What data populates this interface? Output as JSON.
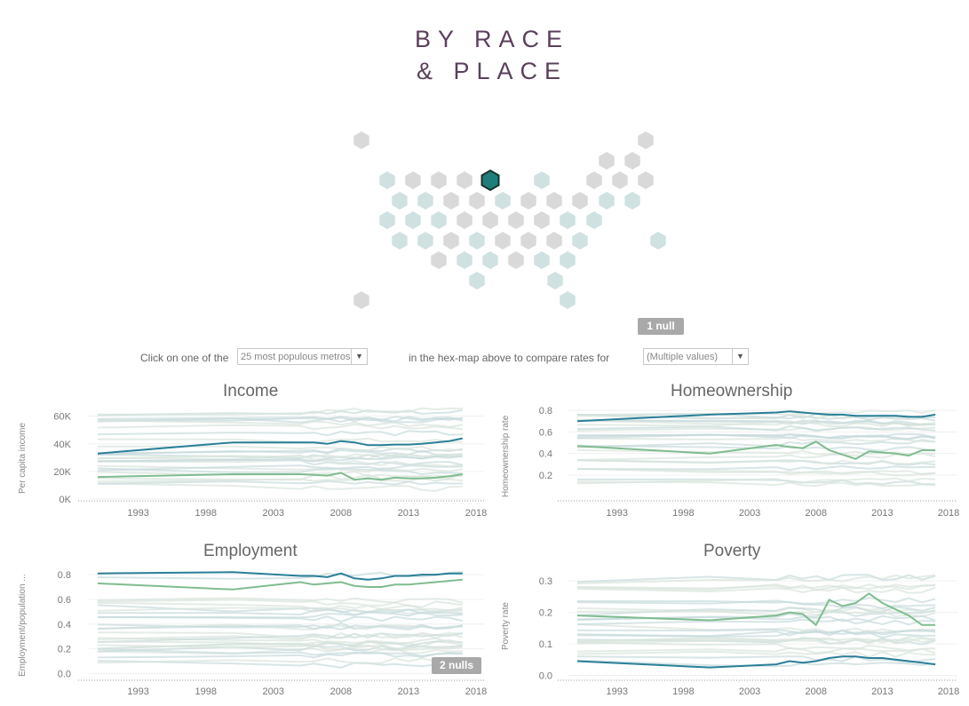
{
  "title": {
    "line1": "BY RACE",
    "line2": "& PLACE"
  },
  "hexmap": {
    "colors": {
      "inactive": "#d9d9d9",
      "available": "#cfe1e1",
      "selected": "#1e7f7a",
      "selected_outline": "#17332f"
    },
    "null_label": "1 null"
  },
  "controls": {
    "prefix": "Click on one of the",
    "geo_select": "25 most populous metros",
    "middle": "in the hex-map above to compare rates for",
    "group_select": "(Multiple values)"
  },
  "chart_data": [
    {
      "type": "line",
      "title": "Income",
      "ylabel": "Per capita income",
      "yticks": [
        0,
        20000,
        40000,
        60000
      ],
      "ytick_labels": [
        "0K",
        "20K",
        "40K",
        "60K"
      ],
      "ylim": [
        0,
        72000
      ],
      "xlim": [
        1990,
        2018
      ],
      "xticks": [
        1993,
        1998,
        2003,
        2008,
        2013,
        2018
      ],
      "series": [
        {
          "color": "#2a7f98",
          "emphasis": true,
          "x": [
            1990,
            2000,
            2005,
            2006,
            2007,
            2008,
            2009,
            2010,
            2011,
            2012,
            2013,
            2014,
            2015,
            2016,
            2017
          ],
          "y": [
            33000,
            41000,
            41000,
            41000,
            40000,
            42000,
            41000,
            39000,
            39000,
            39500,
            39500,
            40000,
            41000,
            42000,
            44000
          ]
        },
        {
          "color": "#7fbc8f",
          "emphasis": true,
          "x": [
            1990,
            2000,
            2005,
            2006,
            2007,
            2008,
            2009,
            2010,
            2011,
            2012,
            2013,
            2014,
            2015,
            2016,
            2017
          ],
          "y": [
            16000,
            18000,
            18000,
            17500,
            17000,
            19000,
            14000,
            15000,
            14000,
            15500,
            15000,
            15000,
            15500,
            16500,
            18000
          ]
        }
      ],
      "null_label": ""
    },
    {
      "type": "line",
      "title": "Homeownership",
      "ylabel": "Homeownership rate",
      "yticks": [
        0.2,
        0.4,
        0.6,
        0.8
      ],
      "ytick_labels": [
        "0.2",
        "0.4",
        "0.6",
        "0.8"
      ],
      "ylim": [
        0.06,
        0.85
      ],
      "xlim": [
        1990,
        2018
      ],
      "xticks": [
        1993,
        1998,
        2003,
        2008,
        2013,
        2018
      ],
      "series": [
        {
          "color": "#2a7f98",
          "emphasis": true,
          "x": [
            1990,
            2000,
            2005,
            2006,
            2007,
            2008,
            2009,
            2010,
            2011,
            2012,
            2013,
            2014,
            2015,
            2016,
            2017
          ],
          "y": [
            0.7,
            0.76,
            0.78,
            0.79,
            0.78,
            0.77,
            0.76,
            0.76,
            0.75,
            0.75,
            0.75,
            0.75,
            0.74,
            0.74,
            0.76
          ]
        },
        {
          "color": "#7fbc8f",
          "emphasis": true,
          "x": [
            1990,
            2000,
            2005,
            2006,
            2007,
            2008,
            2009,
            2010,
            2011,
            2012,
            2013,
            2014,
            2015,
            2016,
            2017
          ],
          "y": [
            0.47,
            0.4,
            0.48,
            0.46,
            0.45,
            0.51,
            0.43,
            0.39,
            0.35,
            0.42,
            0.41,
            0.4,
            0.38,
            0.43,
            0.43
          ]
        }
      ],
      "null_label": ""
    },
    {
      "type": "line",
      "title": "Employment",
      "ylabel": "Employment/population ...",
      "yticks": [
        0.0,
        0.2,
        0.4,
        0.6,
        0.8
      ],
      "ytick_labels": [
        "0.0",
        "0.2",
        "0.4",
        "0.6",
        "0.8"
      ],
      "ylim": [
        -0.04,
        0.88
      ],
      "xlim": [
        1990,
        2018
      ],
      "xticks": [
        1993,
        1998,
        2003,
        2008,
        2013,
        2018
      ],
      "series": [
        {
          "color": "#2a7f98",
          "emphasis": true,
          "x": [
            1990,
            2000,
            2005,
            2006,
            2007,
            2008,
            2009,
            2010,
            2011,
            2012,
            2013,
            2014,
            2015,
            2016,
            2017
          ],
          "y": [
            0.81,
            0.82,
            0.79,
            0.79,
            0.78,
            0.81,
            0.77,
            0.76,
            0.77,
            0.79,
            0.79,
            0.8,
            0.8,
            0.81,
            0.81
          ]
        },
        {
          "color": "#7fbc8f",
          "emphasis": true,
          "x": [
            1990,
            2000,
            2005,
            2006,
            2007,
            2008,
            2009,
            2010,
            2011,
            2012,
            2013,
            2014,
            2015,
            2016,
            2017
          ],
          "y": [
            0.73,
            0.68,
            0.74,
            0.72,
            0.73,
            0.74,
            0.71,
            0.7,
            0.7,
            0.72,
            0.72,
            0.73,
            0.74,
            0.75,
            0.76
          ]
        }
      ],
      "null_label": "2 nulls"
    },
    {
      "type": "line",
      "title": "Poverty",
      "ylabel": "Poverty rate",
      "yticks": [
        0.0,
        0.1,
        0.2,
        0.3
      ],
      "ytick_labels": [
        "0.0",
        "0.1",
        "0.2",
        "0.3"
      ],
      "ylim": [
        -0.01,
        0.34
      ],
      "xlim": [
        1990,
        2018
      ],
      "xticks": [
        1993,
        1998,
        2003,
        2008,
        2013,
        2018
      ],
      "series": [
        {
          "color": "#2a7f98",
          "emphasis": true,
          "x": [
            1990,
            2000,
            2005,
            2006,
            2007,
            2008,
            2009,
            2010,
            2011,
            2012,
            2013,
            2014,
            2015,
            2016,
            2017
          ],
          "y": [
            0.045,
            0.025,
            0.035,
            0.045,
            0.04,
            0.045,
            0.055,
            0.06,
            0.06,
            0.055,
            0.055,
            0.05,
            0.045,
            0.04,
            0.035
          ]
        },
        {
          "color": "#7fbc8f",
          "emphasis": true,
          "x": [
            1990,
            2000,
            2005,
            2006,
            2007,
            2008,
            2009,
            2010,
            2011,
            2012,
            2013,
            2014,
            2015,
            2016,
            2017
          ],
          "y": [
            0.19,
            0.175,
            0.19,
            0.2,
            0.195,
            0.16,
            0.24,
            0.22,
            0.23,
            0.26,
            0.23,
            0.21,
            0.19,
            0.16,
            0.16
          ]
        }
      ],
      "null_label": ""
    }
  ]
}
